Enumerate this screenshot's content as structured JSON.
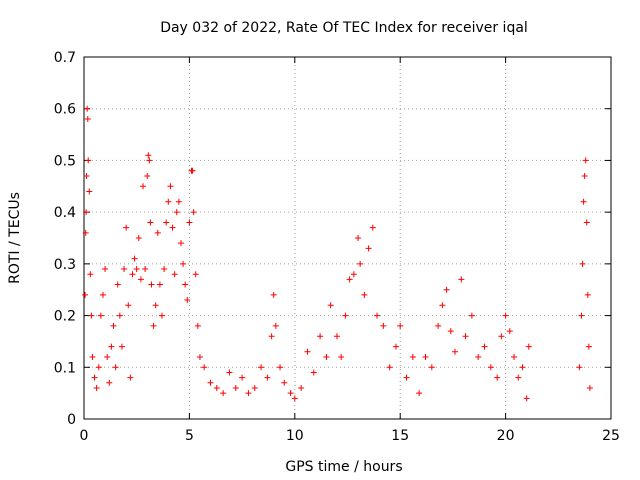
{
  "chart_data": {
    "type": "scatter",
    "title": "Day 032 of 2022, Rate Of TEC Index for receiver iqal",
    "xlabel": "GPS time / hours",
    "ylabel": "ROTI / TECUs",
    "xlim": [
      0,
      25
    ],
    "ylim": [
      0,
      0.7
    ],
    "x_ticks": [
      0,
      5,
      10,
      15,
      20,
      25
    ],
    "y_ticks": [
      0,
      0.1,
      0.2,
      0.3,
      0.4,
      0.5,
      0.6,
      0.7
    ],
    "grid": true,
    "marker": "plus",
    "color": "#ff0000",
    "series": [
      {
        "values": [
          [
            0.05,
            0.24
          ],
          [
            0.08,
            0.36
          ],
          [
            0.1,
            0.4
          ],
          [
            0.12,
            0.47
          ],
          [
            0.15,
            0.6
          ],
          [
            0.18,
            0.58
          ],
          [
            0.2,
            0.5
          ],
          [
            0.25,
            0.44
          ],
          [
            0.3,
            0.28
          ],
          [
            0.35,
            0.2
          ],
          [
            0.4,
            0.12
          ],
          [
            0.5,
            0.08
          ],
          [
            0.6,
            0.06
          ],
          [
            0.7,
            0.1
          ],
          [
            0.8,
            0.2
          ],
          [
            0.9,
            0.24
          ],
          [
            1.0,
            0.29
          ],
          [
            1.1,
            0.12
          ],
          [
            1.2,
            0.07
          ],
          [
            1.3,
            0.14
          ],
          [
            1.4,
            0.18
          ],
          [
            1.5,
            0.1
          ],
          [
            1.6,
            0.26
          ],
          [
            1.7,
            0.2
          ],
          [
            1.8,
            0.14
          ],
          [
            1.9,
            0.29
          ],
          [
            2.0,
            0.37
          ],
          [
            2.1,
            0.22
          ],
          [
            2.2,
            0.08
          ],
          [
            2.3,
            0.28
          ],
          [
            2.4,
            0.31
          ],
          [
            2.5,
            0.29
          ],
          [
            2.6,
            0.35
          ],
          [
            2.7,
            0.27
          ],
          [
            2.8,
            0.45
          ],
          [
            2.9,
            0.29
          ],
          [
            3.0,
            0.47
          ],
          [
            3.05,
            0.51
          ],
          [
            3.1,
            0.5
          ],
          [
            3.15,
            0.38
          ],
          [
            3.2,
            0.26
          ],
          [
            3.3,
            0.18
          ],
          [
            3.4,
            0.22
          ],
          [
            3.5,
            0.36
          ],
          [
            3.6,
            0.26
          ],
          [
            3.7,
            0.2
          ],
          [
            3.8,
            0.29
          ],
          [
            3.9,
            0.38
          ],
          [
            4.0,
            0.42
          ],
          [
            4.1,
            0.45
          ],
          [
            4.2,
            0.37
          ],
          [
            4.3,
            0.28
          ],
          [
            4.4,
            0.4
          ],
          [
            4.5,
            0.42
          ],
          [
            4.6,
            0.34
          ],
          [
            4.7,
            0.3
          ],
          [
            4.8,
            0.26
          ],
          [
            4.9,
            0.23
          ],
          [
            5.0,
            0.38
          ],
          [
            5.1,
            0.48
          ],
          [
            5.15,
            0.48
          ],
          [
            5.2,
            0.4
          ],
          [
            5.3,
            0.28
          ],
          [
            5.4,
            0.18
          ],
          [
            5.5,
            0.12
          ],
          [
            5.7,
            0.1
          ],
          [
            6.0,
            0.07
          ],
          [
            6.3,
            0.06
          ],
          [
            6.6,
            0.05
          ],
          [
            6.9,
            0.09
          ],
          [
            7.2,
            0.06
          ],
          [
            7.5,
            0.08
          ],
          [
            7.8,
            0.05
          ],
          [
            8.1,
            0.06
          ],
          [
            8.4,
            0.1
          ],
          [
            8.7,
            0.08
          ],
          [
            8.9,
            0.16
          ],
          [
            9.0,
            0.24
          ],
          [
            9.1,
            0.18
          ],
          [
            9.3,
            0.1
          ],
          [
            9.5,
            0.07
          ],
          [
            9.8,
            0.05
          ],
          [
            10.0,
            0.04
          ],
          [
            10.3,
            0.06
          ],
          [
            10.6,
            0.13
          ],
          [
            10.9,
            0.09
          ],
          [
            11.2,
            0.16
          ],
          [
            11.5,
            0.12
          ],
          [
            11.7,
            0.22
          ],
          [
            12.0,
            0.16
          ],
          [
            12.2,
            0.12
          ],
          [
            12.4,
            0.2
          ],
          [
            12.6,
            0.27
          ],
          [
            12.8,
            0.28
          ],
          [
            13.0,
            0.35
          ],
          [
            13.1,
            0.3
          ],
          [
            13.3,
            0.24
          ],
          [
            13.5,
            0.33
          ],
          [
            13.7,
            0.37
          ],
          [
            13.9,
            0.2
          ],
          [
            14.2,
            0.18
          ],
          [
            14.5,
            0.1
          ],
          [
            14.8,
            0.14
          ],
          [
            15.0,
            0.18
          ],
          [
            15.3,
            0.08
          ],
          [
            15.6,
            0.12
          ],
          [
            15.9,
            0.05
          ],
          [
            16.2,
            0.12
          ],
          [
            16.5,
            0.1
          ],
          [
            16.8,
            0.18
          ],
          [
            17.0,
            0.22
          ],
          [
            17.2,
            0.25
          ],
          [
            17.4,
            0.17
          ],
          [
            17.6,
            0.13
          ],
          [
            17.9,
            0.27
          ],
          [
            18.1,
            0.16
          ],
          [
            18.4,
            0.2
          ],
          [
            18.7,
            0.12
          ],
          [
            19.0,
            0.14
          ],
          [
            19.3,
            0.1
          ],
          [
            19.6,
            0.08
          ],
          [
            19.8,
            0.16
          ],
          [
            20.0,
            0.2
          ],
          [
            20.2,
            0.17
          ],
          [
            20.4,
            0.12
          ],
          [
            20.6,
            0.08
          ],
          [
            20.8,
            0.1
          ],
          [
            21.0,
            0.04
          ],
          [
            21.1,
            0.14
          ],
          [
            23.5,
            0.1
          ],
          [
            23.6,
            0.2
          ],
          [
            23.65,
            0.3
          ],
          [
            23.7,
            0.42
          ],
          [
            23.75,
            0.47
          ],
          [
            23.8,
            0.5
          ],
          [
            23.85,
            0.38
          ],
          [
            23.9,
            0.24
          ],
          [
            23.95,
            0.14
          ],
          [
            24.0,
            0.06
          ]
        ]
      }
    ]
  }
}
